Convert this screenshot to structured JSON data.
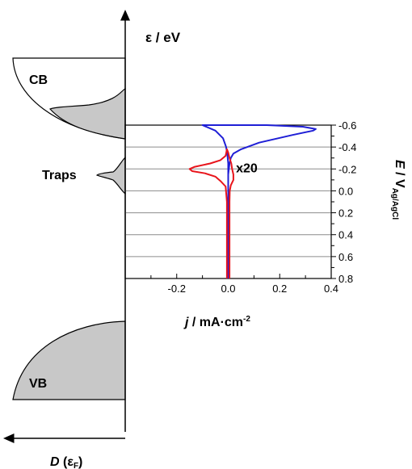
{
  "diagram": {
    "energy_axis_label": "ε / eV",
    "dos_axis_label_main": "D",
    "dos_axis_label_sub": "(ε",
    "dos_axis_label_subsub": "F",
    "dos_axis_label_close": ")",
    "bands": [
      {
        "name": "CB"
      },
      {
        "name": "Traps"
      },
      {
        "name": "VB"
      }
    ],
    "colors": {
      "blue": "#1f1fd6",
      "red": "#e8141b",
      "fill": "#c8c8c8",
      "grid": "#8c8c8c"
    }
  },
  "chart_data": {
    "type": "line",
    "xlabel_main": "j",
    "xlabel_rest": " / mA·cm",
    "xlabel_sup": "-2",
    "ylabel_main": "E",
    "ylabel_rest": " / V",
    "ylabel_sub": "Ag/AgCl",
    "xlim": [
      -0.4,
      0.4
    ],
    "ylim": [
      -0.6,
      0.8
    ],
    "y_inverted": true,
    "x_ticks": [
      "-0.2",
      "0.0",
      "0.2",
      "0.4"
    ],
    "x_tick_values": [
      -0.2,
      0.0,
      0.2,
      0.4
    ],
    "y_ticks": [
      "-0.6",
      "-0.4",
      "-0.2",
      "0.0",
      "0.2",
      "0.4",
      "0.6",
      "0.8"
    ],
    "y_tick_values": [
      -0.6,
      -0.4,
      -0.2,
      0.0,
      0.2,
      0.4,
      0.6,
      0.8
    ],
    "grid": "horizontal",
    "annotation": "x20",
    "series": [
      {
        "color": "#1f1fd6",
        "forward": [
          [
            0.0,
            0.8
          ],
          [
            0.0,
            0.4
          ],
          [
            0.0,
            0.0
          ],
          [
            0.0,
            -0.15
          ],
          [
            0.005,
            -0.25
          ],
          [
            0.01,
            -0.3
          ],
          [
            0.02,
            -0.34
          ],
          [
            0.05,
            -0.38
          ],
          [
            0.12,
            -0.44
          ],
          [
            0.25,
            -0.51
          ],
          [
            0.33,
            -0.55
          ],
          [
            0.34,
            -0.565
          ],
          [
            0.29,
            -0.585
          ],
          [
            0.15,
            -0.6
          ]
        ],
        "reverse": [
          [
            -0.1,
            -0.6
          ],
          [
            -0.05,
            -0.55
          ],
          [
            -0.02,
            -0.48
          ],
          [
            -0.008,
            -0.4
          ],
          [
            -0.003,
            -0.33
          ],
          [
            0.0,
            -0.25
          ],
          [
            0.0,
            -0.18
          ],
          [
            0.0,
            0.0
          ],
          [
            0.0,
            0.4
          ],
          [
            0.0,
            0.8
          ]
        ]
      },
      {
        "color": "#e8141b",
        "forward": [
          [
            0.005,
            0.8
          ],
          [
            0.005,
            0.5
          ],
          [
            0.005,
            0.1
          ],
          [
            0.006,
            0.0
          ],
          [
            0.01,
            -0.05
          ],
          [
            0.02,
            -0.1
          ],
          [
            0.02,
            -0.15
          ],
          [
            0.015,
            -0.2
          ],
          [
            0.012,
            -0.25
          ],
          [
            0.005,
            -0.3
          ],
          [
            0.0,
            -0.35
          ],
          [
            -0.005,
            -0.38
          ]
        ],
        "reverse": [
          [
            -0.005,
            -0.38
          ],
          [
            -0.01,
            -0.32
          ],
          [
            -0.03,
            -0.28
          ],
          [
            -0.07,
            -0.25
          ],
          [
            -0.13,
            -0.22
          ],
          [
            -0.15,
            -0.2
          ],
          [
            -0.14,
            -0.18
          ],
          [
            -0.09,
            -0.16
          ],
          [
            -0.05,
            -0.13
          ],
          [
            -0.03,
            -0.09
          ],
          [
            -0.01,
            -0.04
          ],
          [
            -0.005,
            0.1
          ],
          [
            -0.005,
            0.5
          ],
          [
            -0.005,
            0.8
          ]
        ]
      }
    ]
  }
}
